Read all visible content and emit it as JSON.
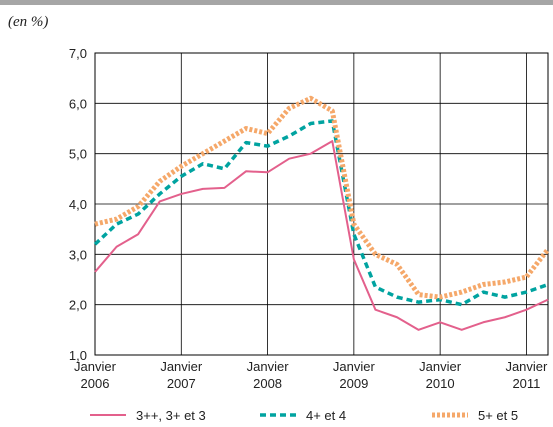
{
  "chart_data": {
    "type": "line",
    "subtitle": "(en %)",
    "categories": [
      "Janvier 2006",
      null,
      null,
      null,
      "Janvier 2007",
      null,
      null,
      null,
      "Janvier 2008",
      null,
      null,
      null,
      "Janvier 2009",
      null,
      null,
      null,
      "Janvier 2010",
      null,
      null,
      null,
      "Janvier 2011",
      null
    ],
    "series": [
      {
        "name": "3++, 3+ et 3",
        "color": "#e3608c",
        "values": [
          2.65,
          3.15,
          3.4,
          4.05,
          4.2,
          4.3,
          4.32,
          4.65,
          4.63,
          4.9,
          5.0,
          5.25,
          2.9,
          1.9,
          1.75,
          1.5,
          1.65,
          1.5,
          1.65,
          1.75,
          1.9,
          2.1
        ]
      },
      {
        "name": "4+ et 4",
        "color": "#00a3a0",
        "values": [
          3.2,
          3.6,
          3.8,
          4.2,
          4.55,
          4.8,
          4.7,
          5.22,
          5.15,
          5.35,
          5.6,
          5.65,
          3.4,
          2.35,
          2.15,
          2.05,
          2.1,
          2.0,
          2.25,
          2.15,
          2.25,
          2.4
        ]
      },
      {
        "name": "5+ et 5",
        "color": "#f5a86a",
        "values": [
          3.6,
          3.7,
          3.95,
          4.45,
          4.75,
          5.0,
          5.25,
          5.5,
          5.4,
          5.9,
          6.1,
          5.85,
          3.6,
          3.0,
          2.8,
          2.2,
          2.15,
          2.25,
          2.4,
          2.45,
          2.55,
          3.1
        ]
      }
    ],
    "ylim": [
      1,
      7
    ],
    "yticks": [
      {
        "value": 1,
        "label": "1,0"
      },
      {
        "value": 2,
        "label": "2,0"
      },
      {
        "value": 3,
        "label": "3,0"
      },
      {
        "value": 4,
        "label": "4,0"
      },
      {
        "value": 5,
        "label": "5,0"
      },
      {
        "value": 6,
        "label": "6,0"
      },
      {
        "value": 7,
        "label": "7,0"
      }
    ],
    "grid": true
  }
}
